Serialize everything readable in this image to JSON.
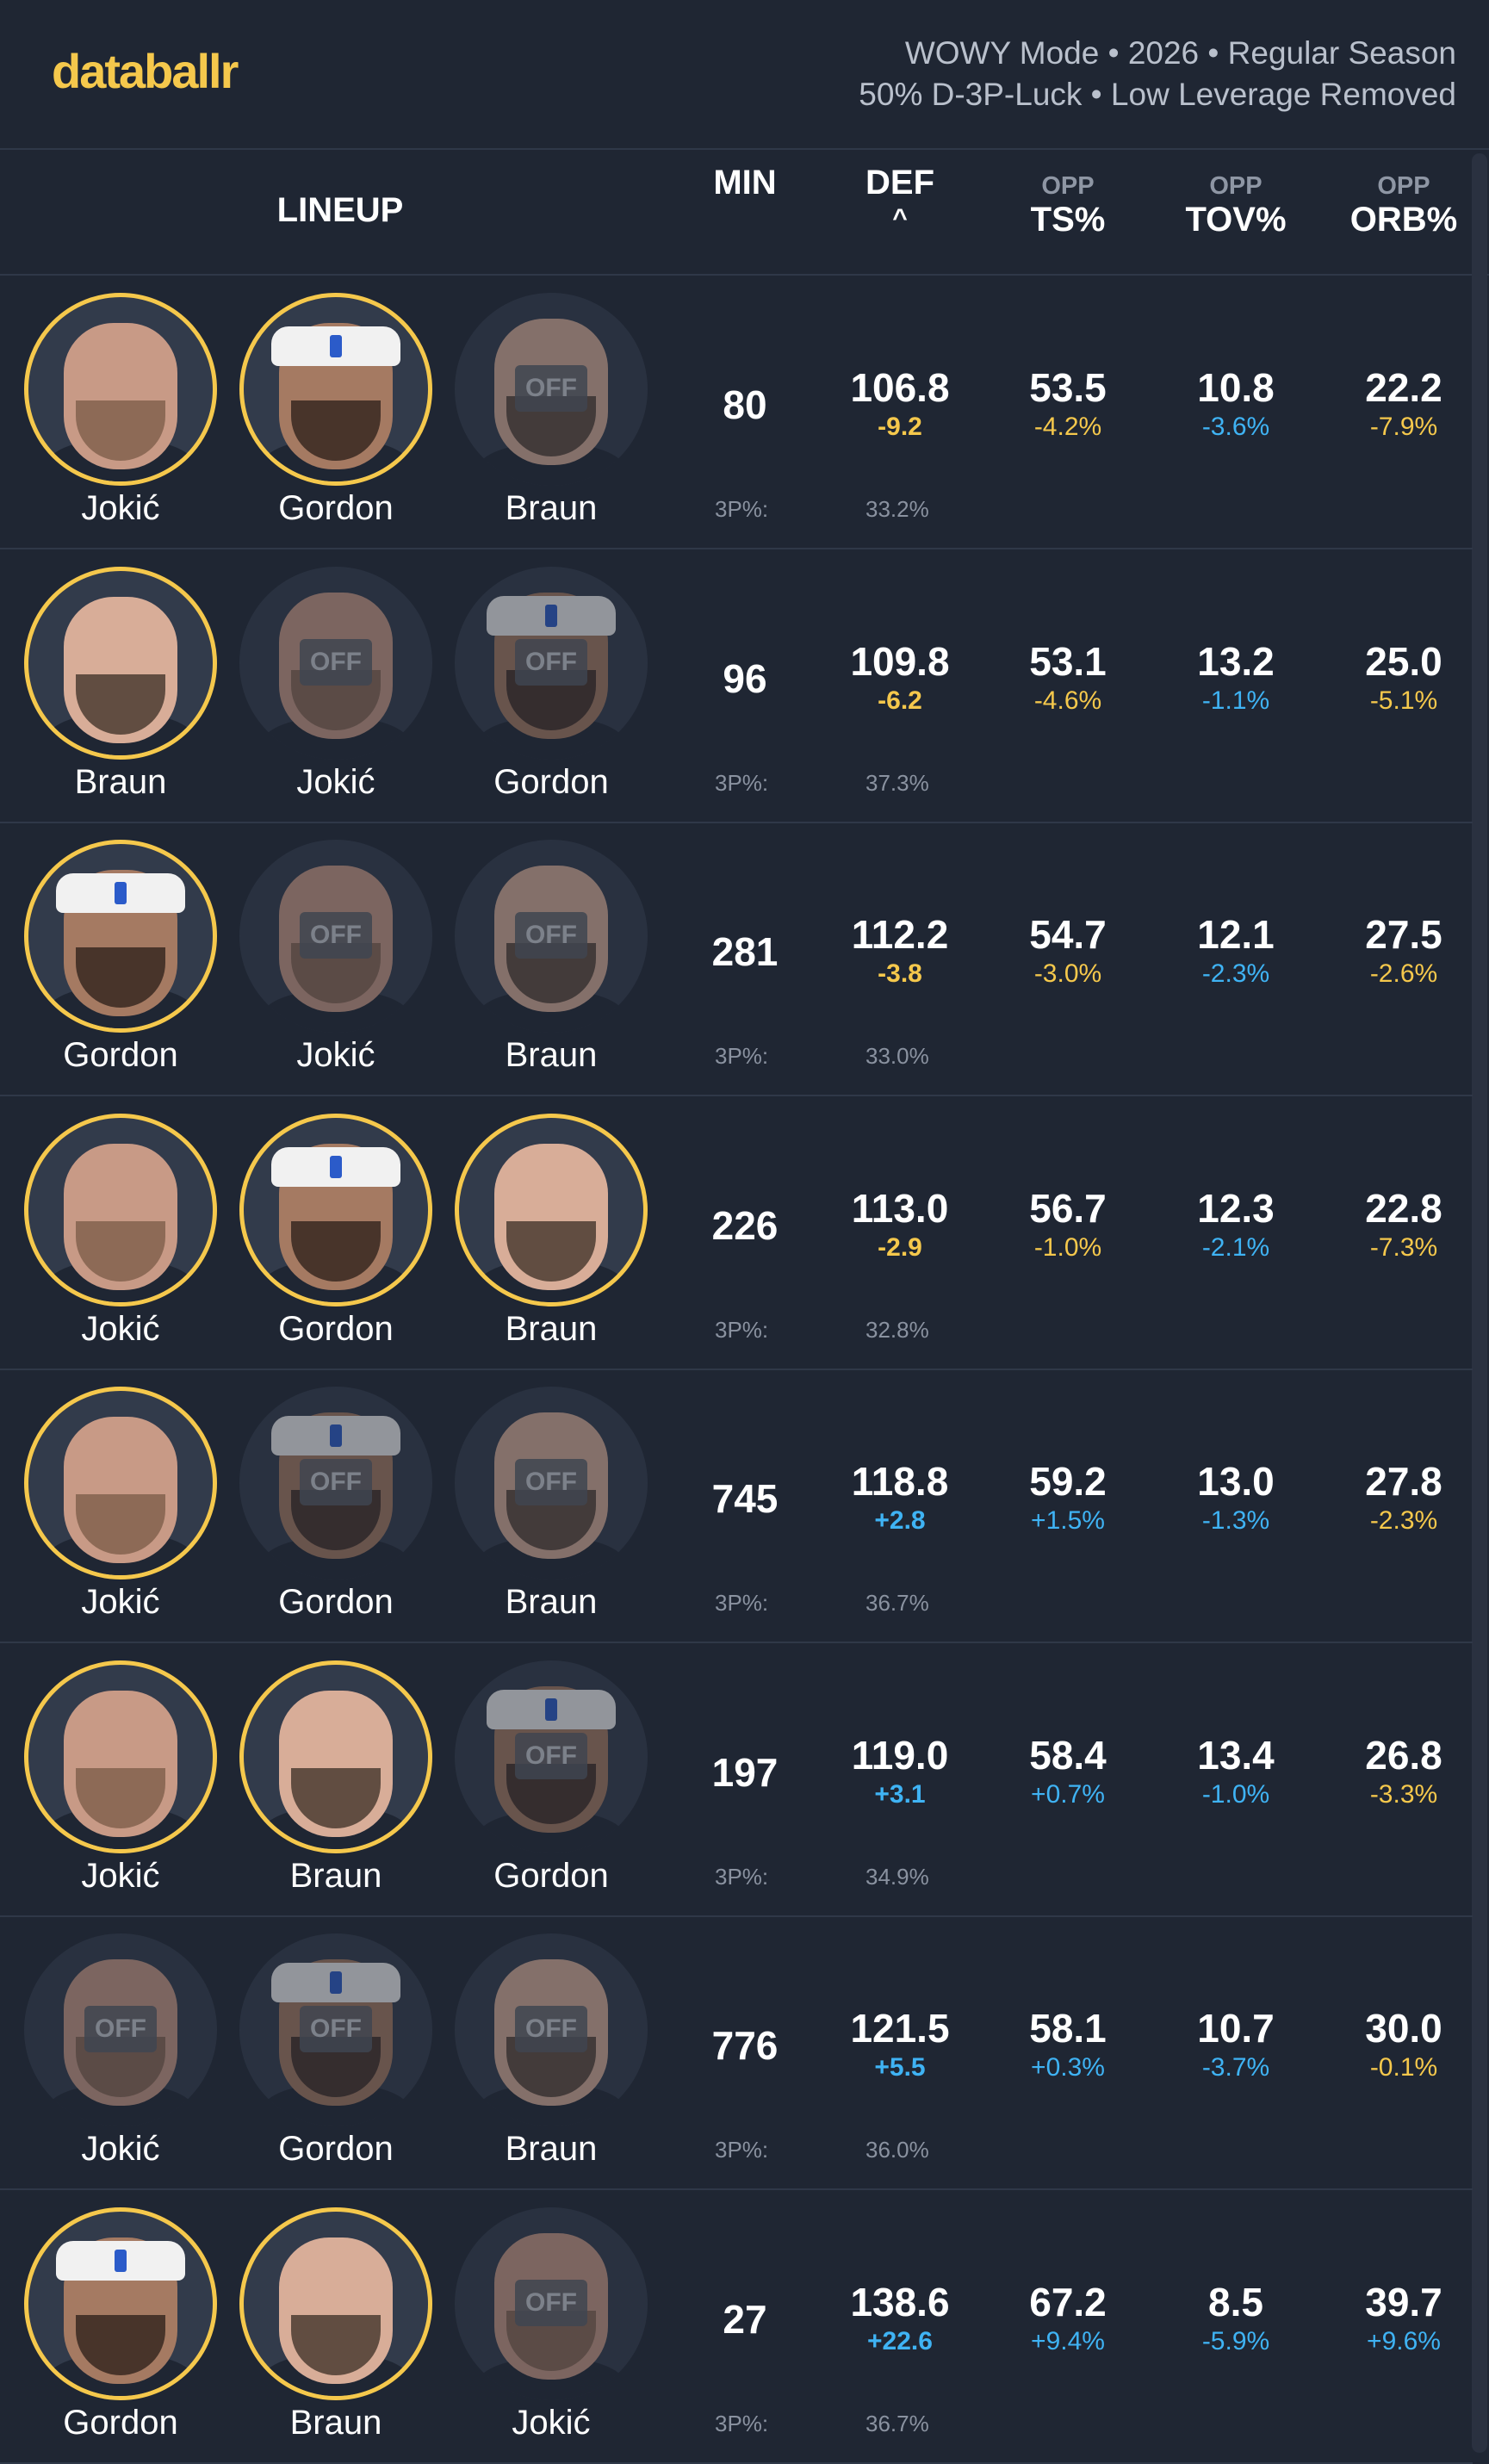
{
  "brand": {
    "logo": "databallr"
  },
  "mode": {
    "line1": "WOWY Mode • 2026 • Regular Season",
    "line2": "50% D-3P-Luck • Low Leverage Removed"
  },
  "colors": {
    "accent": "#f5c84c",
    "positive_bad": "#f5c84c",
    "negative_good": "#3fb3f4",
    "background": "#1f2633"
  },
  "header": {
    "lineup": "LINEUP",
    "min": "MIN",
    "def": "DEF",
    "sort_caret": "^",
    "opp": "OPP",
    "ts": "TS%",
    "tov": "TOV%",
    "orb": "ORB%"
  },
  "off_label": "OFF",
  "tp_label": "3P%:",
  "rows": [
    {
      "players": [
        {
          "name": "Jokić",
          "on": true,
          "band": false
        },
        {
          "name": "Gordon",
          "on": true,
          "band": true
        },
        {
          "name": "Braun",
          "on": false,
          "band": false
        }
      ],
      "min": "80",
      "def": "106.8",
      "def_diff": "-9.2",
      "def_color": "yellow",
      "ts": "53.5",
      "ts_diff": "-4.2%",
      "ts_color": "yellow",
      "tov": "10.8",
      "tov_diff": "-3.6%",
      "tov_color": "blue",
      "orb": "22.2",
      "orb_diff": "-7.9%",
      "orb_color": "yellow",
      "tp": "33.2%"
    },
    {
      "players": [
        {
          "name": "Braun",
          "on": true,
          "band": false
        },
        {
          "name": "Jokić",
          "on": false,
          "band": false
        },
        {
          "name": "Gordon",
          "on": false,
          "band": true
        }
      ],
      "min": "96",
      "def": "109.8",
      "def_diff": "-6.2",
      "def_color": "yellow",
      "ts": "53.1",
      "ts_diff": "-4.6%",
      "ts_color": "yellow",
      "tov": "13.2",
      "tov_diff": "-1.1%",
      "tov_color": "blue",
      "orb": "25.0",
      "orb_diff": "-5.1%",
      "orb_color": "yellow",
      "tp": "37.3%"
    },
    {
      "players": [
        {
          "name": "Gordon",
          "on": true,
          "band": true
        },
        {
          "name": "Jokić",
          "on": false,
          "band": false
        },
        {
          "name": "Braun",
          "on": false,
          "band": false
        }
      ],
      "min": "281",
      "def": "112.2",
      "def_diff": "-3.8",
      "def_color": "yellow",
      "ts": "54.7",
      "ts_diff": "-3.0%",
      "ts_color": "yellow",
      "tov": "12.1",
      "tov_diff": "-2.3%",
      "tov_color": "blue",
      "orb": "27.5",
      "orb_diff": "-2.6%",
      "orb_color": "yellow",
      "tp": "33.0%"
    },
    {
      "players": [
        {
          "name": "Jokić",
          "on": true,
          "band": false
        },
        {
          "name": "Gordon",
          "on": true,
          "band": true
        },
        {
          "name": "Braun",
          "on": true,
          "band": false
        }
      ],
      "min": "226",
      "def": "113.0",
      "def_diff": "-2.9",
      "def_color": "yellow",
      "ts": "56.7",
      "ts_diff": "-1.0%",
      "ts_color": "yellow",
      "tov": "12.3",
      "tov_diff": "-2.1%",
      "tov_color": "blue",
      "orb": "22.8",
      "orb_diff": "-7.3%",
      "orb_color": "yellow",
      "tp": "32.8%"
    },
    {
      "players": [
        {
          "name": "Jokić",
          "on": true,
          "band": false
        },
        {
          "name": "Gordon",
          "on": false,
          "band": true
        },
        {
          "name": "Braun",
          "on": false,
          "band": false
        }
      ],
      "min": "745",
      "def": "118.8",
      "def_diff": "+2.8",
      "def_color": "blue",
      "ts": "59.2",
      "ts_diff": "+1.5%",
      "ts_color": "blue",
      "tov": "13.0",
      "tov_diff": "-1.3%",
      "tov_color": "blue",
      "orb": "27.8",
      "orb_diff": "-2.3%",
      "orb_color": "yellow",
      "tp": "36.7%"
    },
    {
      "players": [
        {
          "name": "Jokić",
          "on": true,
          "band": false
        },
        {
          "name": "Braun",
          "on": true,
          "band": false
        },
        {
          "name": "Gordon",
          "on": false,
          "band": true
        }
      ],
      "min": "197",
      "def": "119.0",
      "def_diff": "+3.1",
      "def_color": "blue",
      "ts": "58.4",
      "ts_diff": "+0.7%",
      "ts_color": "blue",
      "tov": "13.4",
      "tov_diff": "-1.0%",
      "tov_color": "blue",
      "orb": "26.8",
      "orb_diff": "-3.3%",
      "orb_color": "yellow",
      "tp": "34.9%"
    },
    {
      "players": [
        {
          "name": "Jokić",
          "on": false,
          "band": false
        },
        {
          "name": "Gordon",
          "on": false,
          "band": true
        },
        {
          "name": "Braun",
          "on": false,
          "band": false
        }
      ],
      "min": "776",
      "def": "121.5",
      "def_diff": "+5.5",
      "def_color": "blue",
      "ts": "58.1",
      "ts_diff": "+0.3%",
      "ts_color": "blue",
      "tov": "10.7",
      "tov_diff": "-3.7%",
      "tov_color": "blue",
      "orb": "30.0",
      "orb_diff": "-0.1%",
      "orb_color": "yellow",
      "tp": "36.0%"
    },
    {
      "players": [
        {
          "name": "Gordon",
          "on": true,
          "band": true
        },
        {
          "name": "Braun",
          "on": true,
          "band": false
        },
        {
          "name": "Jokić",
          "on": false,
          "band": false
        }
      ],
      "min": "27",
      "def": "138.6",
      "def_diff": "+22.6",
      "def_color": "blue",
      "ts": "67.2",
      "ts_diff": "+9.4%",
      "ts_color": "blue",
      "tov": "8.5",
      "tov_diff": "-5.9%",
      "tov_color": "blue",
      "orb": "39.7",
      "orb_diff": "+9.6%",
      "orb_color": "blue",
      "tp": "36.7%"
    }
  ]
}
